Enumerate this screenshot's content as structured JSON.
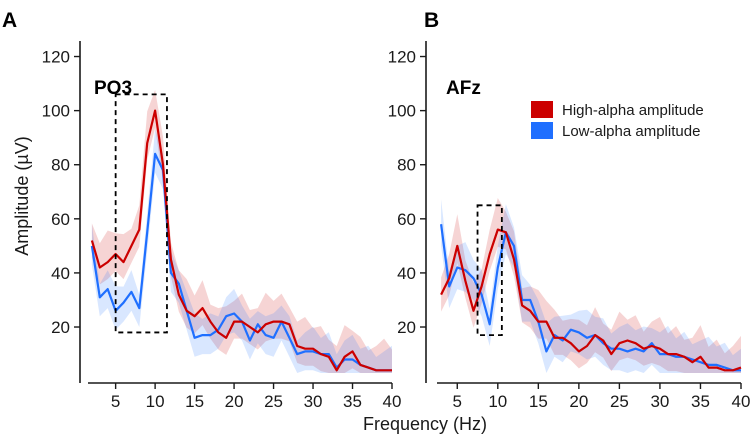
{
  "figure": {
    "xlabel": "Frequency (Hz)",
    "ylabel": "Amplitude (µV)"
  },
  "legend": {
    "placement": "top-right",
    "items": [
      {
        "label": "High-alpha amplitude",
        "color": "#cc0000"
      },
      {
        "label": "Low-alpha amplitude",
        "color": "#1f6fff"
      }
    ]
  },
  "chart_data": [
    {
      "type": "line",
      "panel_letter": "A",
      "title": "PO3",
      "xlim": [
        1.5,
        40
      ],
      "ylim": [
        3,
        125
      ],
      "xticks": [
        5,
        10,
        15,
        20,
        25,
        30,
        35,
        40
      ],
      "yticks": [
        20,
        40,
        60,
        80,
        100,
        120
      ],
      "highlight": {
        "x": [
          5,
          11.5
        ],
        "y": [
          18,
          106
        ]
      },
      "x": [
        2,
        3,
        4,
        5,
        6,
        7,
        8,
        9,
        10,
        11,
        12,
        13,
        14,
        15,
        16,
        17,
        18,
        19,
        20,
        21,
        22,
        23,
        24,
        25,
        26,
        27,
        28,
        29,
        30,
        31,
        32,
        33,
        34,
        35,
        36,
        37,
        38,
        39,
        40
      ],
      "series": [
        {
          "name": "High-alpha amplitude",
          "color": "#cc0000",
          "band": 9,
          "values": [
            52,
            42,
            44,
            47,
            44,
            50,
            56,
            88,
            100,
            80,
            45,
            32,
            26,
            24,
            27,
            22,
            18,
            16,
            22,
            22,
            20,
            18,
            21,
            22,
            22,
            21,
            13,
            12,
            12,
            10,
            9,
            4,
            9,
            11,
            6,
            5,
            4,
            4,
            4
          ]
        },
        {
          "name": "Low-alpha amplitude",
          "color": "#1f6fff",
          "band": 7,
          "values": [
            50,
            31,
            34,
            26,
            29,
            33,
            27,
            55,
            84,
            78,
            40,
            36,
            26,
            16,
            17,
            17,
            19,
            24,
            25,
            22,
            15,
            21,
            17,
            16,
            22,
            16,
            10,
            11,
            11,
            10,
            10,
            5,
            8,
            8,
            6,
            5,
            4,
            4,
            4
          ]
        }
      ]
    },
    {
      "type": "line",
      "panel_letter": "B",
      "title": "AFz",
      "xlim": [
        2.5,
        40
      ],
      "ylim": [
        3,
        125
      ],
      "xticks": [
        5,
        10,
        15,
        20,
        25,
        30,
        35,
        40
      ],
      "yticks": [
        20,
        40,
        60,
        80,
        100,
        120
      ],
      "highlight": {
        "x": [
          7.5,
          10.5
        ],
        "y": [
          17,
          65
        ]
      },
      "x": [
        3,
        4,
        5,
        6,
        7,
        8,
        9,
        10,
        11,
        12,
        13,
        14,
        15,
        16,
        17,
        18,
        19,
        20,
        21,
        22,
        23,
        24,
        25,
        26,
        27,
        28,
        29,
        30,
        31,
        32,
        33,
        34,
        35,
        36,
        37,
        38,
        39,
        40
      ],
      "series": [
        {
          "name": "High-alpha amplitude",
          "color": "#cc0000",
          "band": 9,
          "values": [
            32,
            38,
            50,
            37,
            26,
            35,
            47,
            56,
            55,
            45,
            28,
            26,
            22,
            22,
            16,
            16,
            14,
            11,
            13,
            17,
            15,
            10,
            14,
            15,
            14,
            12,
            13,
            12,
            10,
            10,
            9,
            7,
            9,
            5,
            5,
            4,
            4,
            5
          ]
        },
        {
          "name": "Low-alpha amplitude",
          "color": "#1f6fff",
          "band": 8,
          "values": [
            58,
            35,
            42,
            41,
            38,
            32,
            21,
            42,
            55,
            50,
            30,
            30,
            22,
            11,
            17,
            15,
            19,
            18,
            16,
            17,
            14,
            12,
            12,
            11,
            12,
            11,
            14,
            10,
            10,
            9,
            9,
            8,
            7,
            6,
            6,
            5,
            4,
            4
          ]
        }
      ]
    }
  ]
}
